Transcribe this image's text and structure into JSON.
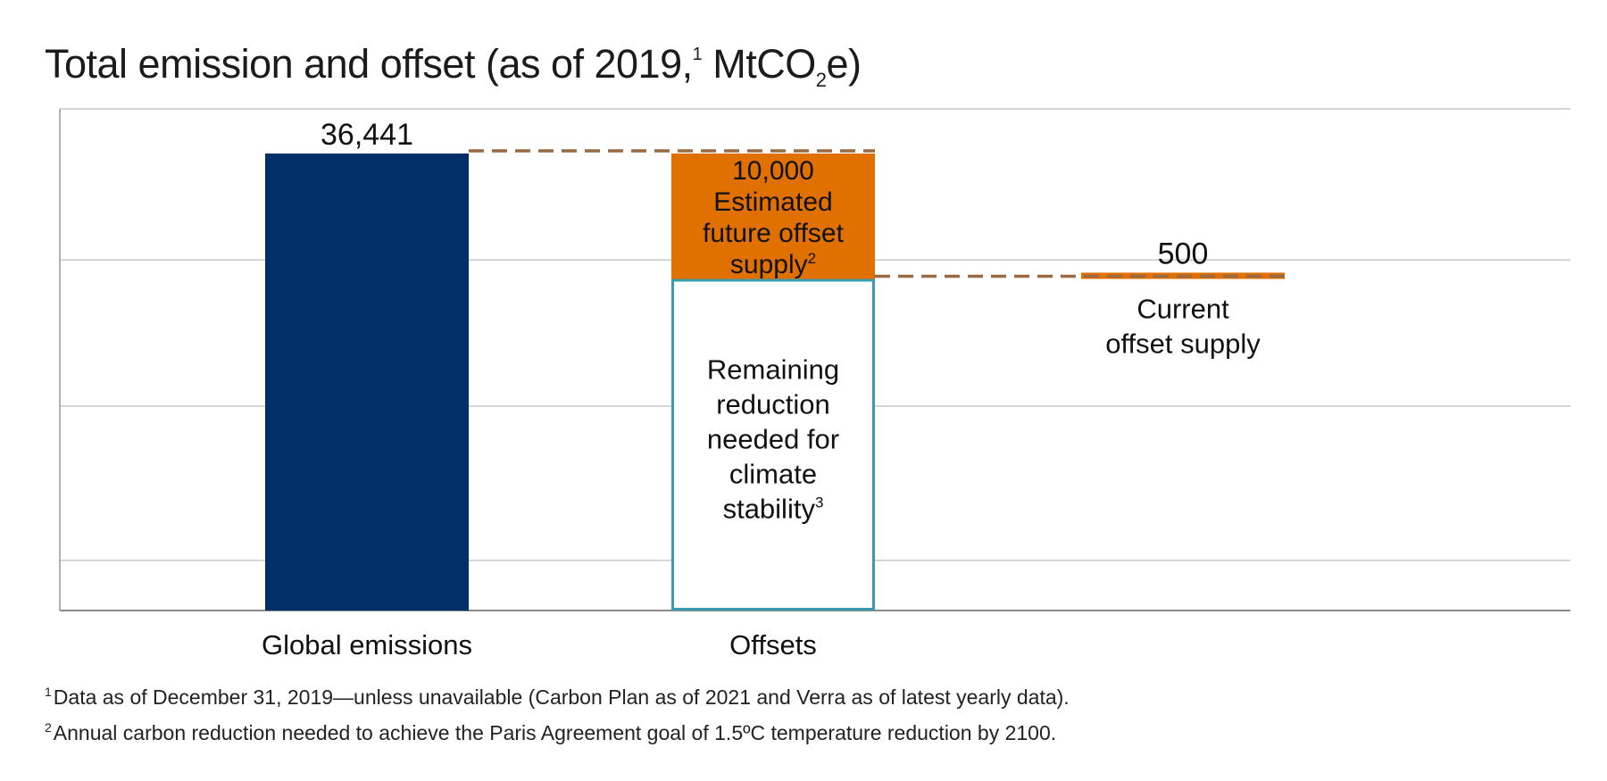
{
  "title": {
    "main": "Total emission and offset (as of 2019,",
    "sup": "1",
    "unit_pre": " MtCO",
    "unit_sub": "2",
    "unit_post": "e)"
  },
  "chart_data": {
    "type": "bar",
    "categories": [
      "Global emissions",
      "Offsets",
      ""
    ],
    "bars": [
      {
        "id": "global-emissions",
        "category": 0,
        "base": 0,
        "value": 36441,
        "label": "36,441",
        "color": "#003067",
        "style": "filled"
      },
      {
        "id": "remaining-reduction",
        "category": 1,
        "base": 0,
        "value": 26441,
        "label": "Remaining reduction needed for climate stability",
        "label_lines": [
          "Remaining",
          "reduction",
          "needed for",
          "climate",
          "stability"
        ],
        "label_sup": "3",
        "color": "#3a9aae",
        "style": "outline"
      },
      {
        "id": "estimated-future-offset",
        "category": 1,
        "base": 26441,
        "value": 10000,
        "label": "10,000",
        "label_lines": [
          "10,000",
          "Estimated",
          "future offset",
          "supply"
        ],
        "label_sup": "2",
        "color": "#e07000",
        "style": "filled"
      },
      {
        "id": "current-offset-supply",
        "category": 2,
        "base": 26441,
        "value": 500,
        "label": "500",
        "caption_lines": [
          "Current",
          "offset supply"
        ],
        "color": "#e07000",
        "style": "filled"
      }
    ],
    "connectors": [
      {
        "from_bar": 0,
        "to_bar": 2,
        "level": 36441,
        "color": "#9a6a42"
      },
      {
        "from_bar": 1,
        "to_bar": 3,
        "level": 26441,
        "color": "#9a6a42"
      }
    ],
    "ylim": [
      0,
      40000
    ],
    "gridlines": [
      4000,
      16300,
      27950,
      40000
    ],
    "grid": true,
    "legend": "none",
    "xlabel": "",
    "ylabel": ""
  },
  "footnotes": [
    {
      "mark": "1",
      "text": "Data as of December 31, 2019—unless unavailable (Carbon Plan as of 2021 and Verra as of latest yearly data)."
    },
    {
      "mark": "2",
      "text": "Annual carbon reduction needed to achieve the Paris Agreement goal of 1.5ºC temperature reduction by 2100."
    }
  ]
}
